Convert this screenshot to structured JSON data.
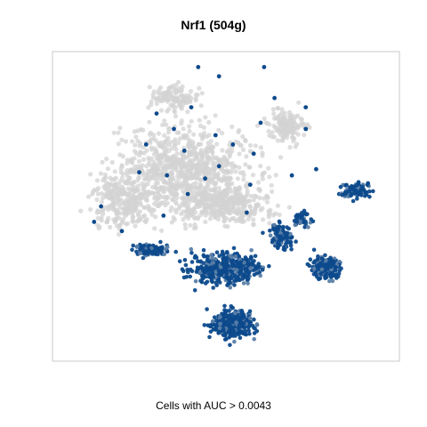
{
  "chart_data": {
    "type": "scatter",
    "title": "Nrf1 (504g)",
    "xlabel": "Cells with AUC > 0.0043",
    "ylabel": "",
    "grid": false,
    "legend": "none",
    "colors": {
      "inactive_cells": "#d3d3d3",
      "active_cells": "#0d4a8c",
      "active_cells_light": "#5b7fa8",
      "frame": "#c8c8c8"
    },
    "xlim": [
      0,
      100
    ],
    "ylim": [
      0,
      100
    ],
    "series": [
      {
        "name": "",
        "color": "#d3d3d3",
        "regions": [
          {
            "cx": 38,
            "cy": 61,
            "rx": 30,
            "ry": 22,
            "n": 900
          },
          {
            "cx": 50,
            "cy": 50,
            "rx": 20,
            "ry": 8,
            "n": 300
          },
          {
            "cx": 20,
            "cy": 52,
            "rx": 12,
            "ry": 14,
            "n": 250
          },
          {
            "cx": 67,
            "cy": 76,
            "rx": 8,
            "ry": 8,
            "n": 150
          },
          {
            "cx": 35,
            "cy": 85,
            "rx": 10,
            "ry": 6,
            "n": 120
          }
        ]
      },
      {
        "name": "",
        "color": "#0d4a8c",
        "regions": [
          {
            "cx": 50,
            "cy": 30,
            "rx": 15,
            "ry": 8,
            "n": 420
          },
          {
            "cx": 52,
            "cy": 12,
            "rx": 9,
            "ry": 7,
            "n": 330
          },
          {
            "cx": 79,
            "cy": 30,
            "rx": 6,
            "ry": 6,
            "n": 180
          },
          {
            "cx": 28,
            "cy": 36,
            "rx": 8,
            "ry": 3,
            "n": 100
          },
          {
            "cx": 66,
            "cy": 40,
            "rx": 6,
            "ry": 7,
            "n": 110
          },
          {
            "cx": 87,
            "cy": 55,
            "rx": 6,
            "ry": 4,
            "n": 100
          },
          {
            "cx": 72,
            "cy": 46,
            "rx": 4,
            "ry": 4,
            "n": 50
          }
        ],
        "scattered": [
          {
            "x": 42,
            "y": 95
          },
          {
            "x": 61,
            "y": 95
          },
          {
            "x": 48,
            "y": 92
          },
          {
            "x": 30,
            "y": 80
          },
          {
            "x": 35,
            "y": 75
          },
          {
            "x": 47,
            "y": 73
          },
          {
            "x": 52,
            "y": 70
          },
          {
            "x": 64,
            "y": 85
          },
          {
            "x": 73,
            "y": 82
          },
          {
            "x": 73,
            "y": 75
          },
          {
            "x": 25,
            "y": 61
          },
          {
            "x": 33,
            "y": 60
          },
          {
            "x": 44,
            "y": 59
          },
          {
            "x": 57,
            "y": 57
          },
          {
            "x": 69,
            "y": 60
          },
          {
            "x": 48,
            "y": 63
          },
          {
            "x": 39,
            "y": 54
          },
          {
            "x": 14,
            "y": 50
          },
          {
            "x": 12,
            "y": 45
          },
          {
            "x": 40,
            "y": 82
          },
          {
            "x": 27,
            "y": 70
          },
          {
            "x": 58,
            "y": 67
          },
          {
            "x": 76,
            "y": 62
          },
          {
            "x": 60,
            "y": 77
          },
          {
            "x": 38,
            "y": 68
          },
          {
            "x": 20,
            "y": 42
          },
          {
            "x": 32,
            "y": 47
          },
          {
            "x": 56,
            "y": 48
          }
        ]
      }
    ]
  }
}
